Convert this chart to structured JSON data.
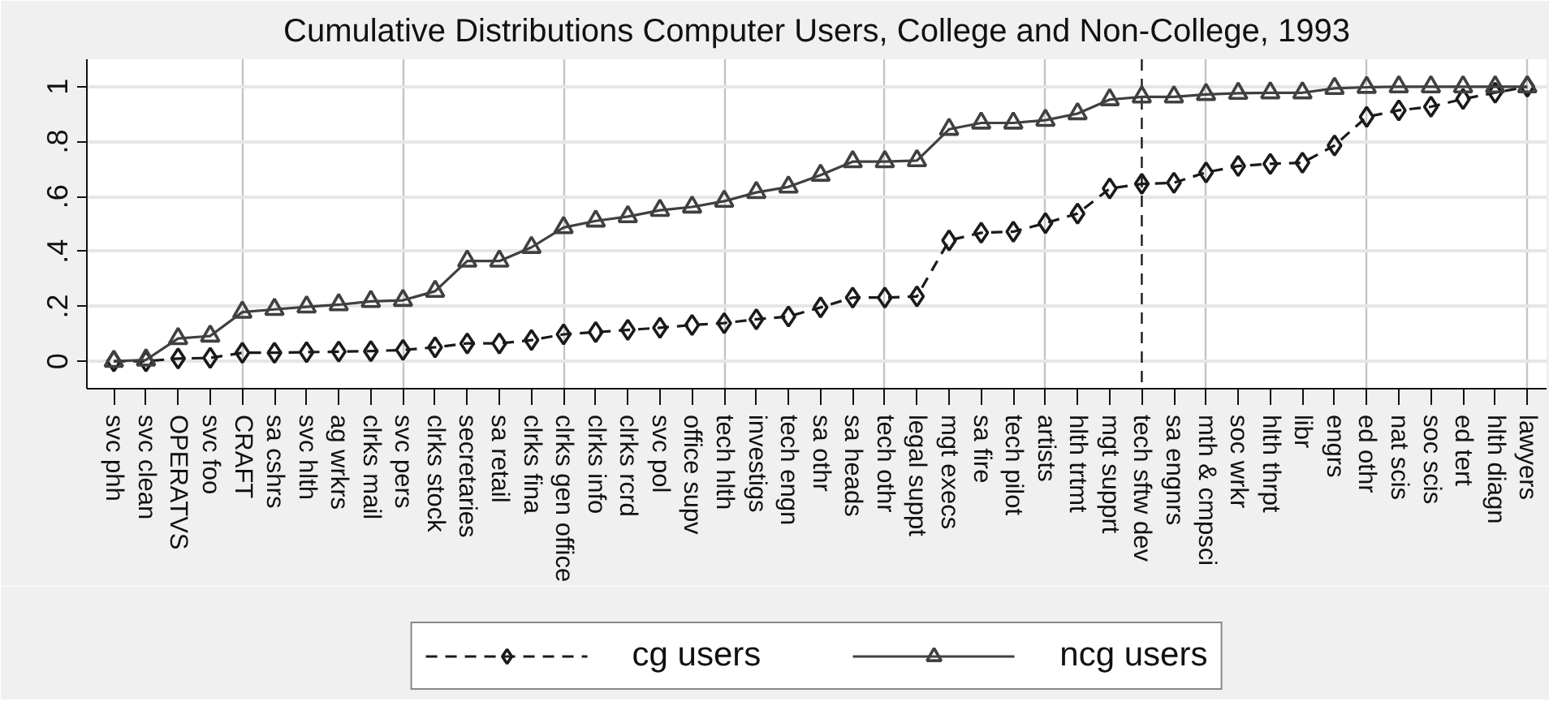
{
  "chart_data": {
    "type": "line",
    "title": "Cumulative Distributions Computer Users, College and Non-College, 1993",
    "categories": [
      "svc phh",
      "svc clean",
      "OPERATVS",
      "svc foo",
      "CRAFT",
      "sa cshrs",
      "svc hlth",
      "ag wrkrs",
      "clrks mail",
      "svc pers",
      "clrks stock",
      "secretaries",
      "sa retail",
      "clrks fina",
      "clrks gen office",
      "clrks info",
      "clrks rcrd",
      "svc pol",
      "office supv",
      "tech hlth",
      "investigs",
      "tech engn",
      "sa othr",
      "sa heads",
      "tech othr",
      "legal suppt",
      "mgt execs",
      "sa fire",
      "tech pilot",
      "artists",
      "hlth trtmt",
      "mgt supprt",
      "tech sftw dev",
      "sa engnrs",
      "mth & cmpsci",
      "soc wrkr",
      "hlth thrpt",
      "libr",
      "engrs",
      "ed othr",
      "nat scis",
      "soc scis",
      "ed tert",
      "hlth diagn",
      "lawyers"
    ],
    "series": [
      {
        "name": "cg users",
        "color": "#1a1a1a",
        "marker": "diamond",
        "line_style": "dashed",
        "values": [
          0,
          0,
          0.01,
          0.012,
          0.031,
          0.031,
          0.033,
          0.035,
          0.037,
          0.041,
          0.051,
          0.065,
          0.065,
          0.077,
          0.098,
          0.106,
          0.114,
          0.122,
          0.132,
          0.139,
          0.153,
          0.163,
          0.196,
          0.232,
          0.232,
          0.236,
          0.44,
          0.468,
          0.472,
          0.503,
          0.538,
          0.629,
          0.646,
          0.65,
          0.688,
          0.711,
          0.719,
          0.723,
          0.786,
          0.89,
          0.914,
          0.927,
          0.955,
          0.978,
          1
        ]
      },
      {
        "name": "ncg users",
        "color": "#404040",
        "marker": "triangle",
        "line_style": "solid",
        "values": [
          0,
          0.005,
          0.083,
          0.092,
          0.179,
          0.189,
          0.198,
          0.206,
          0.218,
          0.222,
          0.255,
          0.365,
          0.365,
          0.415,
          0.487,
          0.511,
          0.527,
          0.55,
          0.562,
          0.583,
          0.615,
          0.635,
          0.678,
          0.727,
          0.727,
          0.731,
          0.845,
          0.868,
          0.868,
          0.878,
          0.902,
          0.953,
          0.963,
          0.963,
          0.972,
          0.976,
          0.978,
          0.978,
          0.994,
          0.998,
          1,
          1,
          1,
          1,
          1
        ]
      }
    ],
    "ylim": [
      -0.1,
      1.1
    ],
    "yticks": [
      0,
      {
        "value": 0.2,
        "label": ".2"
      },
      {
        "value": 0.4,
        "label": ".4"
      },
      {
        "value": 0.6,
        "label": ".6"
      },
      {
        "value": 0.8,
        "label": ".8"
      },
      1
    ],
    "grid": true,
    "legend": "bottom",
    "ref_lines": [
      {
        "axis": "x",
        "value": "tech sftw dev",
        "line_style": "dashed",
        "color": "#1a1a1a"
      }
    ]
  }
}
